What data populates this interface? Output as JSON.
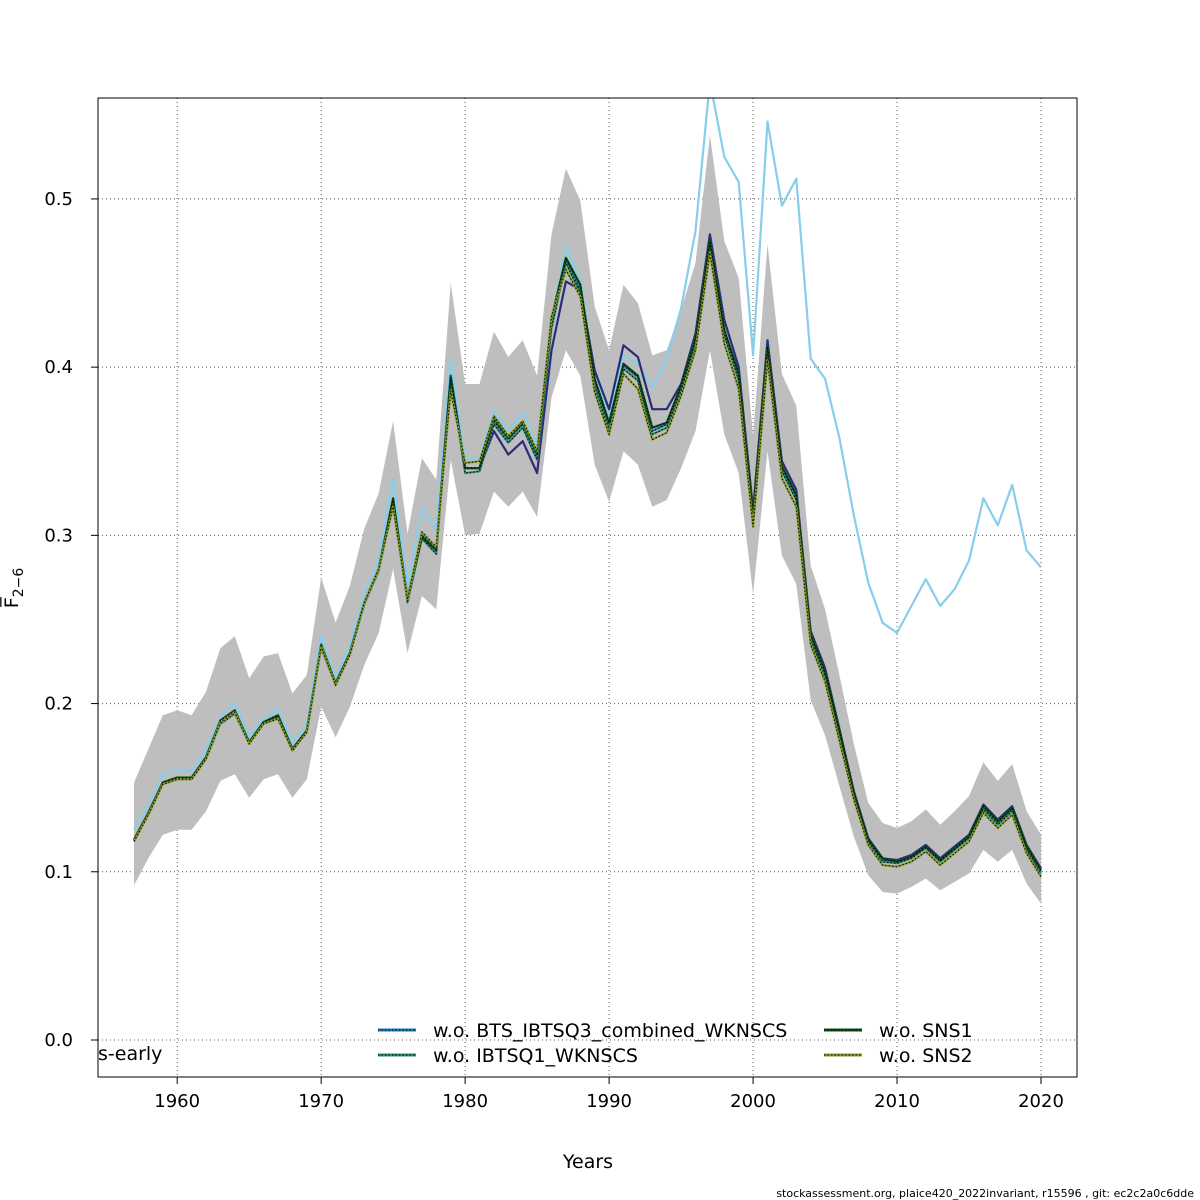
{
  "chart_data": {
    "type": "line",
    "title": "",
    "xlabel": "Years",
    "ylabel": "F̅",
    "ylabel_sub": "2−6",
    "xlim": [
      1954.5,
      2022.5
    ],
    "ylim": [
      -0.022,
      0.56
    ],
    "x_ticks": [
      1960,
      1970,
      1980,
      1990,
      2000,
      2010,
      2020
    ],
    "x_tick_labels": [
      "1960",
      "1970",
      "1980",
      "1990",
      "2000",
      "2010",
      "2020"
    ],
    "y_ticks": [
      0.0,
      0.1,
      0.2,
      0.3,
      0.4,
      0.5
    ],
    "y_tick_labels": [
      "0.0",
      "0.1",
      "0.2",
      "0.3",
      "0.4",
      "0.5"
    ],
    "grid": true,
    "corner_label": "s-early",
    "legend_position": "bottom",
    "years": [
      1957,
      1958,
      1959,
      1960,
      1961,
      1962,
      1963,
      1964,
      1965,
      1966,
      1967,
      1968,
      1969,
      1970,
      1971,
      1972,
      1973,
      1974,
      1975,
      1976,
      1977,
      1978,
      1979,
      1980,
      1981,
      1982,
      1983,
      1984,
      1985,
      1986,
      1987,
      1988,
      1989,
      1990,
      1991,
      1992,
      1993,
      1994,
      1995,
      1996,
      1997,
      1998,
      1999,
      2000,
      2001,
      2002,
      2003,
      2004,
      2005,
      2006,
      2007,
      2008,
      2009,
      2010,
      2011,
      2012,
      2013,
      2014,
      2015,
      2016,
      2017,
      2018,
      2019,
      2020
    ],
    "confidence_band": {
      "color": "#bebebe",
      "lower": [
        0.092,
        0.108,
        0.122,
        0.125,
        0.125,
        0.136,
        0.154,
        0.158,
        0.144,
        0.155,
        0.158,
        0.144,
        0.155,
        0.198,
        0.18,
        0.198,
        0.223,
        0.242,
        0.28,
        0.23,
        0.264,
        0.256,
        0.345,
        0.3,
        0.301,
        0.326,
        0.317,
        0.326,
        0.311,
        0.382,
        0.41,
        0.395,
        0.342,
        0.32,
        0.35,
        0.342,
        0.317,
        0.321,
        0.34,
        0.362,
        0.41,
        0.36,
        0.337,
        0.265,
        0.35,
        0.288,
        0.271,
        0.202,
        0.181,
        0.151,
        0.121,
        0.098,
        0.088,
        0.087,
        0.091,
        0.096,
        0.089,
        0.094,
        0.099,
        0.113,
        0.106,
        0.113,
        0.093,
        0.081
      ],
      "upper": [
        0.153,
        0.173,
        0.193,
        0.196,
        0.193,
        0.207,
        0.233,
        0.24,
        0.215,
        0.228,
        0.23,
        0.206,
        0.217,
        0.275,
        0.248,
        0.27,
        0.304,
        0.325,
        0.368,
        0.301,
        0.346,
        0.333,
        0.45,
        0.39,
        0.39,
        0.421,
        0.406,
        0.416,
        0.395,
        0.479,
        0.518,
        0.499,
        0.436,
        0.41,
        0.449,
        0.438,
        0.407,
        0.41,
        0.434,
        0.462,
        0.538,
        0.475,
        0.453,
        0.359,
        0.473,
        0.396,
        0.377,
        0.282,
        0.256,
        0.217,
        0.176,
        0.141,
        0.129,
        0.126,
        0.13,
        0.137,
        0.128,
        0.136,
        0.145,
        0.165,
        0.154,
        0.164,
        0.136,
        0.122
      ]
    },
    "series": [
      {
        "name": "",
        "color": "#87ceeb",
        "style": "solid",
        "width": 2.2,
        "values": [
          0.125,
          0.14,
          0.158,
          0.161,
          0.16,
          0.172,
          0.192,
          0.201,
          0.18,
          0.191,
          0.197,
          0.176,
          0.188,
          0.24,
          0.215,
          0.234,
          0.265,
          0.285,
          0.334,
          0.27,
          0.316,
          0.303,
          0.405,
          0.345,
          0.346,
          0.374,
          0.362,
          0.373,
          0.353,
          0.427,
          0.472,
          0.452,
          0.395,
          0.37,
          0.407,
          0.402,
          0.388,
          0.405,
          0.435,
          0.481,
          0.57,
          0.525,
          0.51,
          0.407,
          0.546,
          0.496,
          0.512,
          0.405,
          0.393,
          0.358,
          0.312,
          0.272,
          0.248,
          0.242,
          0.258,
          0.274,
          0.258,
          0.268,
          0.285,
          0.322,
          0.306,
          0.33,
          0.291,
          0.281
        ]
      },
      {
        "name": "",
        "color": "#2b2b7a",
        "style": "solid",
        "width": 2.2,
        "values": [
          0.119,
          0.135,
          0.153,
          0.156,
          0.156,
          0.168,
          0.189,
          0.195,
          0.177,
          0.189,
          0.192,
          0.173,
          0.184,
          0.234,
          0.212,
          0.23,
          0.26,
          0.28,
          0.32,
          0.262,
          0.3,
          0.292,
          0.395,
          0.34,
          0.34,
          0.362,
          0.348,
          0.356,
          0.337,
          0.41,
          0.451,
          0.446,
          0.398,
          0.375,
          0.413,
          0.406,
          0.375,
          0.375,
          0.39,
          0.42,
          0.479,
          0.428,
          0.4,
          0.315,
          0.416,
          0.344,
          0.327,
          0.243,
          0.221,
          0.185,
          0.148,
          0.12,
          0.108,
          0.107,
          0.11,
          0.116,
          0.108,
          0.115,
          0.122,
          0.14,
          0.131,
          0.139,
          0.116,
          0.102
        ]
      },
      {
        "name": "w.o. BTS_IBTSQ3_combined_WKNSCS",
        "color": "#1f77b4",
        "style": "dotted",
        "width": 2.0,
        "values": [
          0.119,
          0.135,
          0.153,
          0.156,
          0.156,
          0.168,
          0.189,
          0.195,
          0.177,
          0.189,
          0.192,
          0.173,
          0.184,
          0.235,
          0.212,
          0.23,
          0.26,
          0.28,
          0.321,
          0.263,
          0.3,
          0.292,
          0.395,
          0.34,
          0.34,
          0.368,
          0.357,
          0.366,
          0.347,
          0.425,
          0.463,
          0.446,
          0.39,
          0.365,
          0.401,
          0.394,
          0.362,
          0.366,
          0.388,
          0.415,
          0.474,
          0.421,
          0.394,
          0.311,
          0.411,
          0.34,
          0.323,
          0.24,
          0.218,
          0.183,
          0.146,
          0.119,
          0.107,
          0.106,
          0.109,
          0.115,
          0.107,
          0.114,
          0.121,
          0.138,
          0.129,
          0.137,
          0.114,
          0.1
        ]
      },
      {
        "name": "w.o. IBTSQ1_WKNSCS",
        "color": "#2e8b74",
        "style": "dotted",
        "width": 2.0,
        "values": [
          0.118,
          0.134,
          0.152,
          0.155,
          0.155,
          0.167,
          0.188,
          0.194,
          0.176,
          0.188,
          0.191,
          0.172,
          0.183,
          0.233,
          0.211,
          0.229,
          0.259,
          0.279,
          0.318,
          0.26,
          0.298,
          0.289,
          0.393,
          0.337,
          0.338,
          0.366,
          0.355,
          0.364,
          0.345,
          0.423,
          0.462,
          0.444,
          0.388,
          0.363,
          0.399,
          0.392,
          0.36,
          0.364,
          0.386,
          0.413,
          0.472,
          0.419,
          0.392,
          0.309,
          0.409,
          0.338,
          0.321,
          0.238,
          0.216,
          0.181,
          0.145,
          0.118,
          0.106,
          0.105,
          0.108,
          0.114,
          0.106,
          0.113,
          0.12,
          0.137,
          0.128,
          0.136,
          0.113,
          0.099
        ]
      },
      {
        "name": "w.o. SNS1",
        "color": "#0f4d1a",
        "style": "dotted",
        "width": 2.2,
        "values": [
          0.119,
          0.135,
          0.153,
          0.156,
          0.156,
          0.168,
          0.19,
          0.196,
          0.177,
          0.189,
          0.193,
          0.173,
          0.184,
          0.235,
          0.212,
          0.23,
          0.26,
          0.28,
          0.322,
          0.262,
          0.299,
          0.291,
          0.394,
          0.34,
          0.34,
          0.37,
          0.358,
          0.367,
          0.349,
          0.429,
          0.465,
          0.449,
          0.393,
          0.367,
          0.402,
          0.395,
          0.364,
          0.367,
          0.389,
          0.417,
          0.475,
          0.422,
          0.396,
          0.312,
          0.412,
          0.341,
          0.324,
          0.241,
          0.219,
          0.184,
          0.147,
          0.119,
          0.108,
          0.106,
          0.109,
          0.115,
          0.107,
          0.114,
          0.121,
          0.139,
          0.13,
          0.138,
          0.115,
          0.101
        ]
      },
      {
        "name": "w.o. SNS2",
        "color": "#8a9a2c",
        "style": "dotted",
        "width": 2.2,
        "values": [
          0.118,
          0.134,
          0.152,
          0.155,
          0.155,
          0.167,
          0.189,
          0.195,
          0.176,
          0.188,
          0.191,
          0.172,
          0.183,
          0.234,
          0.211,
          0.229,
          0.26,
          0.28,
          0.317,
          0.262,
          0.302,
          0.293,
          0.386,
          0.343,
          0.344,
          0.371,
          0.359,
          0.368,
          0.35,
          0.43,
          0.458,
          0.442,
          0.385,
          0.36,
          0.396,
          0.387,
          0.357,
          0.361,
          0.383,
          0.41,
          0.468,
          0.414,
          0.387,
          0.305,
          0.404,
          0.334,
          0.317,
          0.235,
          0.213,
          0.178,
          0.143,
          0.116,
          0.104,
          0.103,
          0.106,
          0.112,
          0.104,
          0.111,
          0.118,
          0.135,
          0.126,
          0.134,
          0.111,
          0.097
        ]
      }
    ],
    "legend_layout": [
      {
        "series": 2,
        "column": 0,
        "row": 0
      },
      {
        "series": 3,
        "column": 0,
        "row": 1
      },
      {
        "series": 4,
        "column": 1,
        "row": 0
      },
      {
        "series": 5,
        "column": 1,
        "row": 1
      }
    ]
  },
  "footer_text": "stockassessment.org, plaice420_2022invariant, r15596 , git: ec2c2a0c6dde"
}
